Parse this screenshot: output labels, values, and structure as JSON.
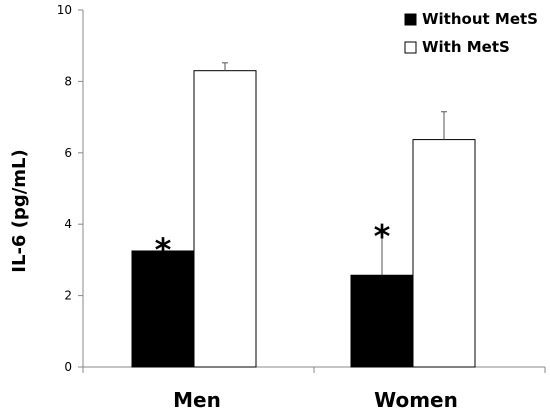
{
  "chart_data": {
    "type": "bar",
    "title": "",
    "xlabel": "",
    "ylabel": "IL-6 (pg/mL)",
    "ylim": [
      0,
      10
    ],
    "yticks": [
      "0",
      "2",
      "4",
      "6",
      "8",
      "10"
    ],
    "grid": false,
    "legend_position": "top-right",
    "categories": [
      "Men",
      "Women"
    ],
    "series": [
      {
        "name": "Without MetS",
        "color": "#000000",
        "values": [
          3.25,
          2.57
        ],
        "error": [
          0.22,
          1.28
        ],
        "annotations": [
          "*",
          "*"
        ]
      },
      {
        "name": "With MetS",
        "color": "#ffffff",
        "values": [
          8.3,
          6.37
        ],
        "error": [
          0.22,
          0.78
        ],
        "annotations": [
          "",
          ""
        ]
      }
    ]
  }
}
